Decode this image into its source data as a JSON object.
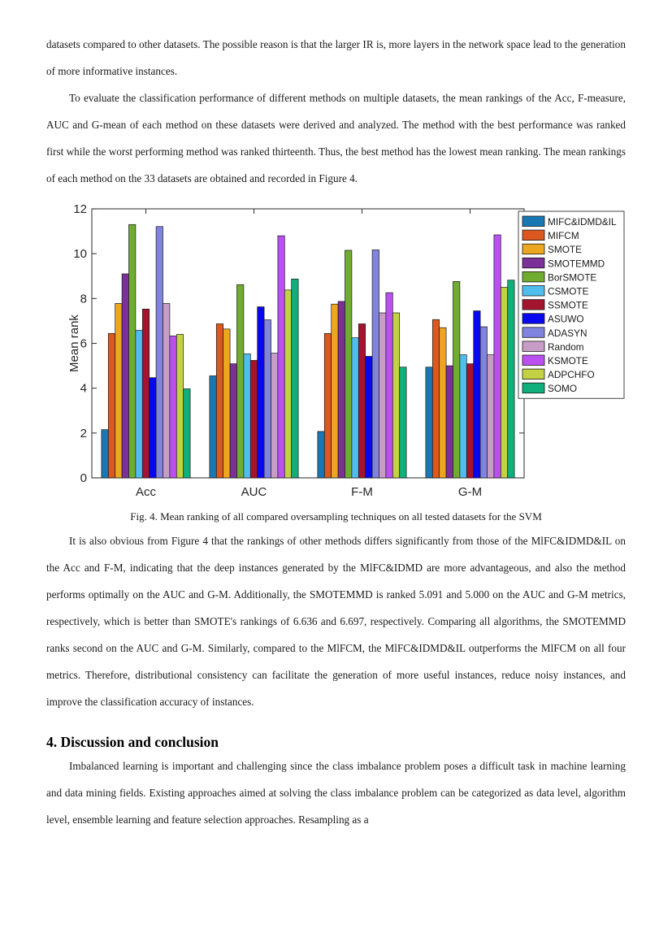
{
  "document": {
    "paragraph_1": "datasets compared to other datasets. The possible reason is that the larger IR is, more layers in the network space lead to the generation of more informative instances.",
    "paragraph_2": "To evaluate the classification performance of different methods on multiple datasets, the mean rankings of the Acc, F-measure, AUC and G-mean of each method on these datasets were derived and analyzed. The method with the best performance was ranked first while the worst performing method was ranked thirteenth. Thus, the best method has the lowest mean ranking. The mean rankings of each method on the 33 datasets are obtained and recorded in Figure 4.",
    "figure_caption": "Fig. 4. Mean ranking of all compared oversampling techniques on all tested datasets for the SVM",
    "paragraph_3": "It is also obvious from Figure 4 that the rankings of other methods differs significantly from those of the MlFC&IDMD&IL on the Acc and F-M, indicating that the deep instances generated by the MlFC&IDMD are more advantageous, and also the method performs optimally on the AUC and G-M. Additionally, the SMOTEMMD is ranked 5.091 and 5.000 on the AUC and G-M metrics, respectively, which is better than SMOTE's rankings of 6.636 and 6.697, respectively. Comparing all algorithms, the SMOTEMMD ranks second on the AUC and G-M. Similarly, compared to the MlFCM, the MlFC&IDMD&IL outperforms the MlFCM on all four metrics. Therefore, distributional consistency can facilitate the generation of more useful instances, reduce noisy instances, and improve the classification accuracy of instances.",
    "section_heading": "4. Discussion and conclusion",
    "paragraph_4": "Imbalanced learning is important and challenging since the class imbalance problem poses a difficult task in machine learning and data mining fields. Existing approaches aimed at solving the class imbalance problem can be categorized as data level, algorithm level, ensemble learning and feature selection approaches. Resampling as a"
  },
  "chart_data": {
    "type": "bar",
    "title": "",
    "xlabel": "",
    "ylabel": "Mean rank",
    "categories": [
      "Acc",
      "AUC",
      "F-M",
      "G-M"
    ],
    "ylim": [
      0,
      12
    ],
    "yticks": [
      0,
      2,
      4,
      6,
      8,
      10,
      12
    ],
    "grid": false,
    "legend_position": "upper right",
    "axis_color": "#3c3c3c",
    "tick_label_color": "#262626",
    "bar_edge_color": "#1a1a1a",
    "series": [
      {
        "name": "MIFC&IDMD&IL",
        "color": "#1878b4",
        "values": [
          2.15,
          4.55,
          2.07,
          4.94
        ]
      },
      {
        "name": "MIFCM",
        "color": "#db581e",
        "values": [
          6.44,
          6.87,
          6.44,
          7.06
        ]
      },
      {
        "name": "SMOTE",
        "color": "#eda620",
        "values": [
          7.78,
          6.64,
          7.75,
          6.7
        ]
      },
      {
        "name": "SMOTEMMD",
        "color": "#7b2f98",
        "values": [
          9.1,
          5.09,
          7.87,
          5.0
        ]
      },
      {
        "name": "BorSMOTE",
        "color": "#70ac30",
        "values": [
          11.3,
          8.62,
          10.15,
          8.76
        ]
      },
      {
        "name": "CSMOTE",
        "color": "#4fbeef",
        "values": [
          6.58,
          5.53,
          6.25,
          5.49
        ]
      },
      {
        "name": "SSMOTE",
        "color": "#a5142f",
        "values": [
          7.53,
          5.24,
          6.87,
          5.09
        ]
      },
      {
        "name": "ASUWO",
        "color": "#0808f0",
        "values": [
          4.47,
          7.63,
          5.42,
          7.45
        ]
      },
      {
        "name": "ADASYN",
        "color": "#8084de",
        "values": [
          11.21,
          7.05,
          10.17,
          6.74
        ]
      },
      {
        "name": "Random",
        "color": "#c79dc7",
        "values": [
          7.78,
          5.56,
          7.36,
          5.49
        ]
      },
      {
        "name": "KSMOTE",
        "color": "#bb4ff2",
        "values": [
          6.33,
          10.8,
          8.26,
          10.84
        ]
      },
      {
        "name": "ADPCHFO",
        "color": "#c3d243",
        "values": [
          6.4,
          8.38,
          7.36,
          8.5
        ]
      },
      {
        "name": "SOMO",
        "color": "#10af7c",
        "values": [
          3.97,
          8.87,
          4.94,
          8.82
        ]
      }
    ]
  }
}
